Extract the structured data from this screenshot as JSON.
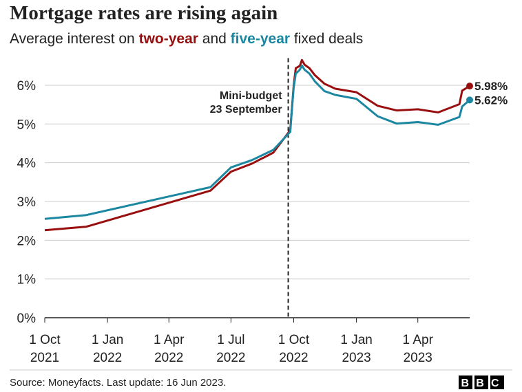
{
  "chart_data": {
    "type": "line",
    "title": "Mortgage rates are rising again",
    "subtitle": [
      "Average interest on",
      "two-year",
      "and",
      "five-year",
      "fixed deals"
    ],
    "x": [
      "2021-10-01",
      "2021-12-01",
      "2022-06-01",
      "2022-07-01",
      "2022-08-01",
      "2022-09-01",
      "2022-09-23",
      "2022-09-26",
      "2022-09-28",
      "2022-10-01",
      "2022-10-04",
      "2022-10-10",
      "2022-10-13",
      "2022-10-17",
      "2022-10-24",
      "2022-11-01",
      "2022-11-15",
      "2022-12-01",
      "2023-01-01",
      "2023-02-01",
      "2023-03-01",
      "2023-04-01",
      "2023-05-01",
      "2023-06-01",
      "2023-06-05",
      "2023-06-16"
    ],
    "series": [
      {
        "name": "two-year",
        "color": "#990f0f",
        "values": [
          2.26,
          2.35,
          3.28,
          3.77,
          3.98,
          4.26,
          4.77,
          4.86,
          5.3,
          6.0,
          6.44,
          6.5,
          6.65,
          6.53,
          6.44,
          6.26,
          6.04,
          5.91,
          5.82,
          5.47,
          5.35,
          5.38,
          5.3,
          5.51,
          5.86,
          5.98
        ],
        "value_labels": [
          null,
          null,
          null,
          null,
          null,
          null,
          null,
          null,
          null,
          null,
          null,
          null,
          null,
          null,
          null,
          null,
          null,
          null,
          null,
          null,
          null,
          null,
          null,
          null,
          null,
          "5.98%"
        ]
      },
      {
        "name": "five-year",
        "color": "#1b87a0",
        "values": [
          2.55,
          2.65,
          3.37,
          3.88,
          4.07,
          4.33,
          4.74,
          4.8,
          5.3,
          5.95,
          6.3,
          6.4,
          6.51,
          6.4,
          6.3,
          6.1,
          5.85,
          5.75,
          5.65,
          5.2,
          5.01,
          5.05,
          4.98,
          5.18,
          5.45,
          5.62
        ],
        "value_labels": [
          null,
          null,
          null,
          null,
          null,
          null,
          null,
          null,
          null,
          null,
          null,
          null,
          null,
          null,
          null,
          null,
          null,
          null,
          null,
          null,
          null,
          null,
          null,
          null,
          null,
          "5.62%"
        ]
      }
    ],
    "xlim": [
      "2021-10-01",
      "2023-06-16"
    ],
    "xticks": [
      {
        "value": "2021-10-01",
        "label": "1 Oct 2021"
      },
      {
        "value": "2022-01-01",
        "label": "1 Jan 2022"
      },
      {
        "value": "2022-04-01",
        "label": "1 Apr 2022"
      },
      {
        "value": "2022-07-01",
        "label": "1 Jul 2022"
      },
      {
        "value": "2022-10-01",
        "label": "1 Oct 2022"
      },
      {
        "value": "2023-01-01",
        "label": "1 Jan 2023"
      },
      {
        "value": "2023-04-01",
        "label": "1 Apr 2023"
      }
    ],
    "ylim": [
      0,
      6.7
    ],
    "yticks": [
      {
        "value": 0,
        "label": "0%"
      },
      {
        "value": 1,
        "label": "1%"
      },
      {
        "value": 2,
        "label": "2%"
      },
      {
        "value": 3,
        "label": "3%"
      },
      {
        "value": 4,
        "label": "4%"
      },
      {
        "value": 5,
        "label": "5%"
      },
      {
        "value": 6,
        "label": "6%"
      }
    ],
    "grid": true,
    "annotations": [
      {
        "x": "2022-09-23",
        "text": [
          "Mini-budget",
          "23 September"
        ]
      }
    ],
    "source": "Source: Moneyfacts. Last update: 16 Jun 2023.",
    "logo": "BBC"
  }
}
